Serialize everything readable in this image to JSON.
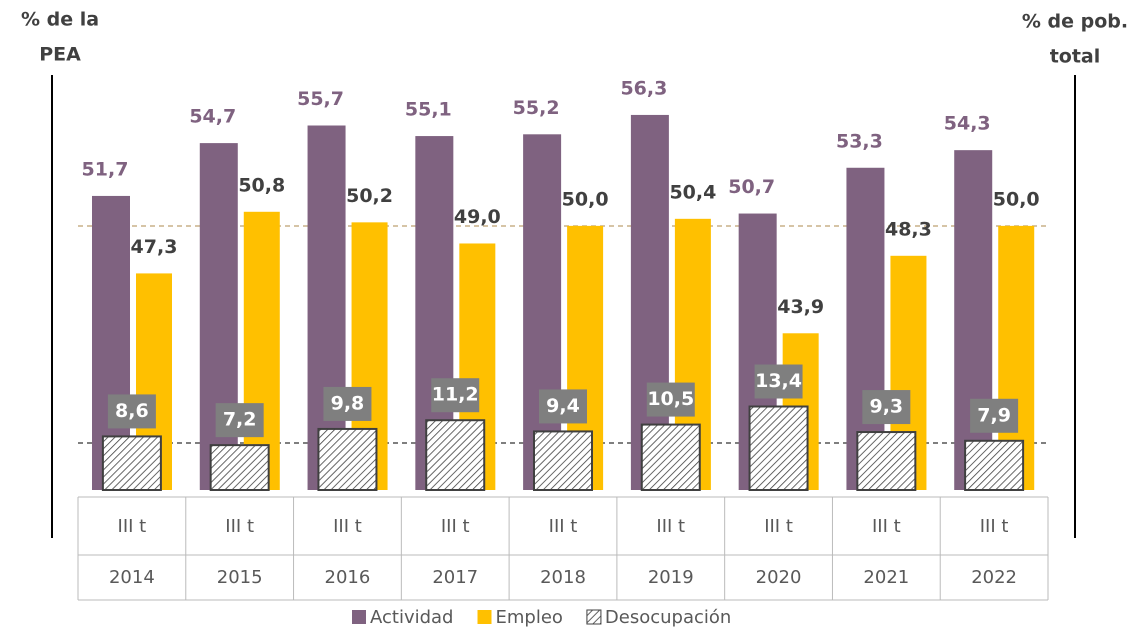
{
  "chart_data": {
    "type": "bar",
    "y_label": [
      "% de la",
      "PEA"
    ],
    "y2_label": [
      "% de pob.",
      "total"
    ],
    "categories": [
      "2014",
      "2015",
      "2016",
      "2017",
      "2018",
      "2019",
      "2020",
      "2021",
      "2022"
    ],
    "quarters": [
      "III t",
      "III t",
      "III t",
      "III t",
      "III t",
      "III t",
      "III t",
      "III t",
      "III t"
    ],
    "ylim": [
      0,
      65
    ],
    "y2lim": [
      35,
      58
    ],
    "series": [
      {
        "name": "Actividad",
        "color": "#7f6280",
        "axis": "y2",
        "values": [
          51.7,
          54.7,
          55.7,
          55.1,
          55.2,
          56.3,
          50.7,
          53.3,
          54.3
        ],
        "value_labels": [
          "51,7",
          "54,7",
          "55,7",
          "55,1",
          "55,2",
          "56,3",
          "50,7",
          "53,3",
          "54,3"
        ]
      },
      {
        "name": "Empleo",
        "color": "#ffc000",
        "axis": "y2",
        "values": [
          47.3,
          50.8,
          50.2,
          49.0,
          50.0,
          50.4,
          43.9,
          48.3,
          50.0
        ],
        "value_labels": [
          "47,3",
          "50,8",
          "50,2",
          "49,0",
          "50,0",
          "50,4",
          "43,9",
          "48,3",
          "50,0"
        ]
      },
      {
        "name": "Desocupación",
        "color": "#404040",
        "hatch": true,
        "values": [
          8.6,
          7.2,
          9.8,
          11.2,
          9.4,
          10.5,
          13.4,
          9.3,
          7.9
        ],
        "value_labels": [
          "8,6",
          "7,2",
          "9,8",
          "11,2",
          "9,4",
          "10,5",
          "13,4",
          "9,3",
          "7,9"
        ]
      }
    ]
  }
}
